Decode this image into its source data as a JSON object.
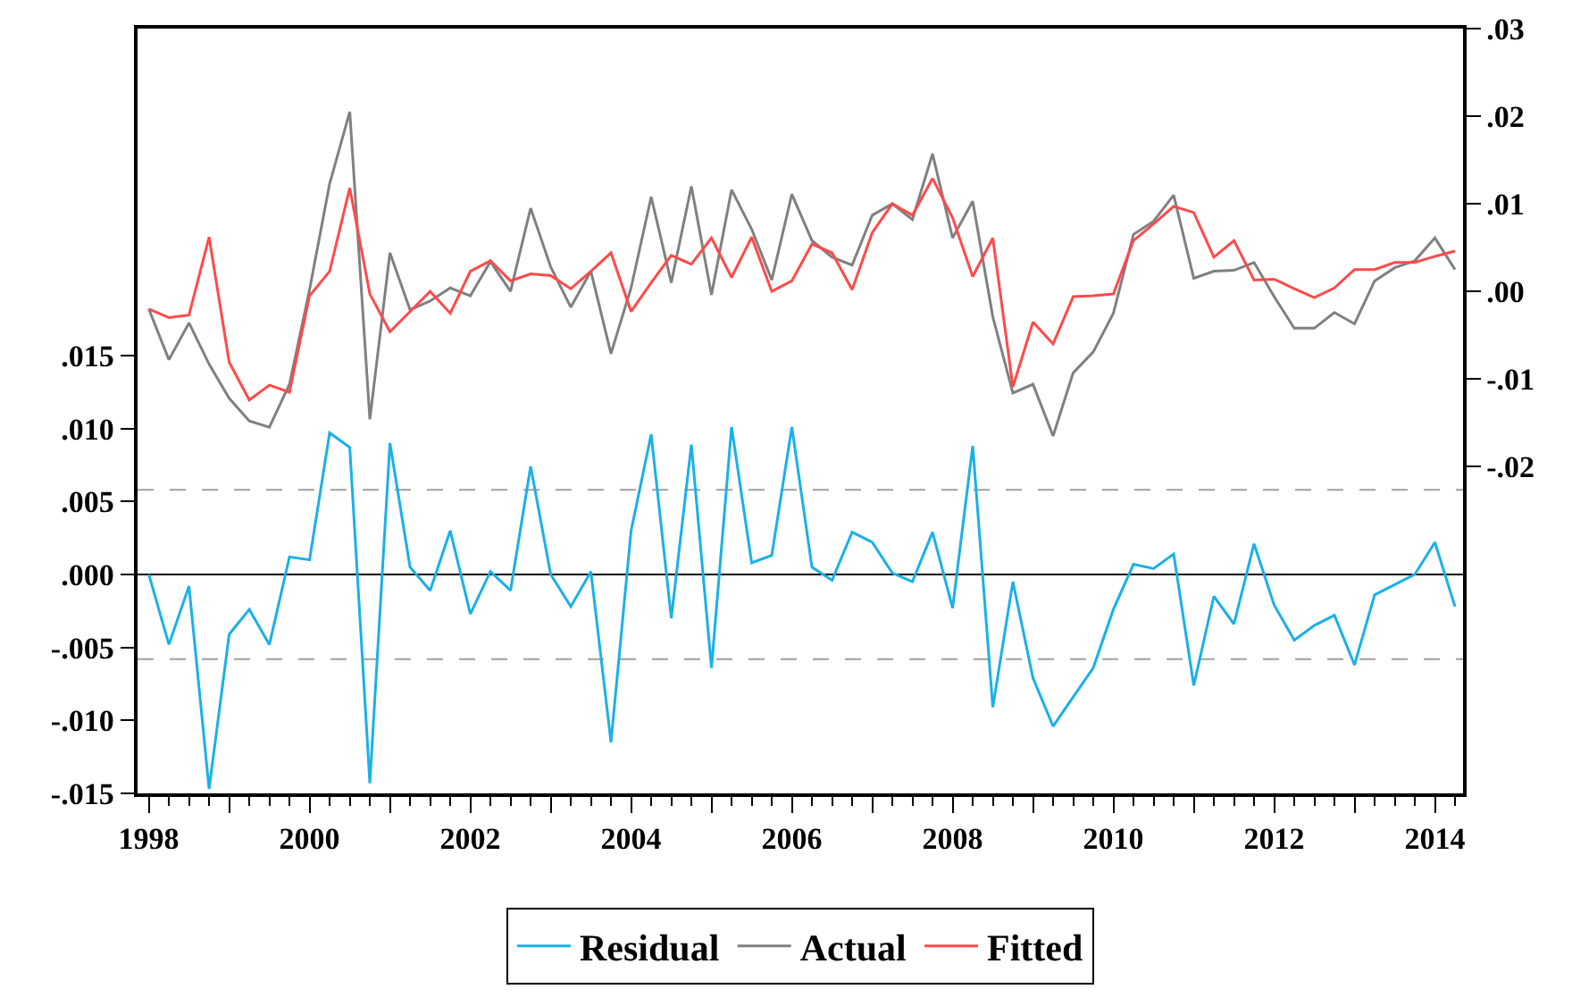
{
  "chart_data": {
    "type": "line",
    "x": [
      1998,
      1998.25,
      1998.5,
      1998.75,
      1999,
      1999.25,
      1999.5,
      1999.75,
      2000,
      2000.25,
      2000.5,
      2000.75,
      2001,
      2001.25,
      2001.5,
      2001.75,
      2002,
      2002.25,
      2002.5,
      2002.75,
      2003,
      2003.25,
      2003.5,
      2003.75,
      2004,
      2004.25,
      2004.5,
      2004.75,
      2005,
      2005.25,
      2005.5,
      2005.75,
      2006,
      2006.25,
      2006.5,
      2006.75,
      2007,
      2007.25,
      2007.5,
      2007.75,
      2008,
      2008.25,
      2008.5,
      2008.75,
      2009,
      2009.25,
      2009.5,
      2009.75,
      2010,
      2010.25,
      2010.5,
      2010.75,
      2011,
      2011.25,
      2011.5,
      2011.75,
      2012,
      2012.25,
      2012.5,
      2012.75,
      2013,
      2013.25,
      2013.5,
      2013.75,
      2014,
      2014.25
    ],
    "series": [
      {
        "name": "Residual",
        "color": "#1ab0e8",
        "axis": "y",
        "values": [
          0,
          -0.0048,
          -0.0008,
          -0.0147,
          -0.0041,
          -0.0024,
          -0.0048,
          0.0012,
          0.001,
          0.0097,
          0.0087,
          -0.0143,
          0.009,
          0.0005,
          -0.0011,
          0.003,
          -0.0027,
          0.0002,
          -0.0011,
          0.0074,
          0,
          -0.0022,
          0.0002,
          -0.0115,
          0.003,
          0.0096,
          -0.003,
          0.0089,
          -0.0064,
          0.0101,
          0.0008,
          0.0013,
          0.0101,
          0.0005,
          -0.0004,
          0.0029,
          0.0022,
          0.0001,
          -0.0005,
          0.0029,
          -0.0023,
          0.0088,
          -0.0091,
          -0.0005,
          -0.0071,
          -0.0104,
          -0.0084,
          -0.0064,
          -0.0024,
          0.0007,
          0.0004,
          0.0014,
          -0.0076,
          -0.0015,
          -0.0034,
          0.0021,
          -0.0021,
          -0.0045,
          -0.0035,
          -0.0028,
          -0.0062,
          -0.0014,
          -0.0007,
          0,
          0.0022,
          -0.0022
        ]
      },
      {
        "name": "Actual",
        "color": "#808080",
        "axis": "y2",
        "values": [
          -0.002,
          -0.0078,
          -0.0036,
          -0.0083,
          -0.0122,
          -0.0148,
          -0.0155,
          -0.0106,
          0.0002,
          0.0123,
          0.0205,
          -0.0146,
          0.0044,
          -0.0021,
          -0.0011,
          0.0004,
          -0.0005,
          0.0034,
          0,
          0.0095,
          0.0028,
          -0.0018,
          0.0023,
          -0.0071,
          0.0004,
          0.0108,
          0.001,
          0.012,
          -0.0004,
          0.0116,
          0.0071,
          0.0013,
          0.0111,
          0.0058,
          0.0039,
          0.003,
          0.0087,
          0.01,
          0.0082,
          0.0157,
          0.0061,
          0.0103,
          -0.0029,
          -0.0116,
          -0.0106,
          -0.0165,
          -0.0093,
          -0.0069,
          -0.0025,
          0.0065,
          0.008,
          0.011,
          0.0015,
          0.0023,
          0.0024,
          0.0033,
          -0.0006,
          -0.0042,
          -0.0042,
          -0.0024,
          -0.0037,
          0.0012,
          0.0027,
          0.0035,
          0.0061,
          0.0025
        ]
      },
      {
        "name": "Fitted",
        "color": "#ff4a4a",
        "axis": "y2",
        "values": [
          -0.002,
          -0.003,
          -0.0027,
          0.0062,
          -0.0081,
          -0.0124,
          -0.0107,
          -0.0115,
          -0.0005,
          0.0023,
          0.0118,
          -0.0003,
          -0.0046,
          -0.0023,
          0,
          -0.0025,
          0.0023,
          0.0035,
          0.0012,
          0.002,
          0.0018,
          0.0003,
          0.0023,
          0.0044,
          -0.0023,
          0.001,
          0.0041,
          0.0031,
          0.0061,
          0.0016,
          0.0062,
          0,
          0.0012,
          0.0054,
          0.0044,
          0.0002,
          0.0067,
          0.01,
          0.0087,
          0.0129,
          0.0084,
          0.0017,
          0.0061,
          -0.0109,
          -0.0035,
          -0.006,
          -0.0006,
          -0.0005,
          -0.0003,
          0.0058,
          0.0077,
          0.0097,
          0.009,
          0.0039,
          0.0058,
          0.0013,
          0.0014,
          0.0003,
          -0.0007,
          0.0004,
          0.0025,
          0.0025,
          0.0033,
          0.0033,
          0.004,
          0.0046
        ]
      }
    ],
    "xlim": [
      1997.86,
      2014.35
    ],
    "xticks": [
      {
        "value": 1998,
        "label": "1998"
      },
      {
        "value": 1999,
        "label": null
      },
      {
        "value": 2000,
        "label": "2000"
      },
      {
        "value": 2001,
        "label": null
      },
      {
        "value": 2002,
        "label": "2002"
      },
      {
        "value": 2003,
        "label": null
      },
      {
        "value": 2004,
        "label": "2004"
      },
      {
        "value": 2005,
        "label": null
      },
      {
        "value": 2006,
        "label": "2006"
      },
      {
        "value": 2007,
        "label": null
      },
      {
        "value": 2008,
        "label": "2008"
      },
      {
        "value": 2009,
        "label": null
      },
      {
        "value": 2010,
        "label": "2010"
      },
      {
        "value": 2011,
        "label": null
      },
      {
        "value": 2012,
        "label": "2012"
      },
      {
        "value": 2013,
        "label": null
      },
      {
        "value": 2014,
        "label": "2014"
      }
    ],
    "ylim": [
      -0.015,
      0.0374
    ],
    "yticks": [
      {
        "value": -0.015,
        "label": "-.015"
      },
      {
        "value": -0.01,
        "label": "-.010"
      },
      {
        "value": -0.005,
        "label": "-.005"
      },
      {
        "value": 0,
        "label": ".000"
      },
      {
        "value": 0.005,
        "label": ".005"
      },
      {
        "value": 0.01,
        "label": ".010"
      },
      {
        "value": 0.015,
        "label": ".015"
      }
    ],
    "y2lim": [
      -0.0573,
      0.03
    ],
    "y2ticks": [
      {
        "value": -0.02,
        "label": "-.02"
      },
      {
        "value": -0.01,
        "label": "-.01"
      },
      {
        "value": 0,
        "label": ".00"
      },
      {
        "value": 0.01,
        "label": ".01"
      },
      {
        "value": 0.02,
        "label": ".02"
      },
      {
        "value": 0.03,
        "label": ".03"
      }
    ],
    "ref_lines": [
      {
        "axis": "y",
        "value": 0,
        "color": "#000000",
        "line_style": "solid"
      },
      {
        "axis": "y",
        "value": 0.0058,
        "color": "#a0a0a0",
        "line_style": "dashed"
      },
      {
        "axis": "y",
        "value": -0.0058,
        "color": "#a0a0a0",
        "line_style": "dashed"
      }
    ],
    "grid": false,
    "legend": "bottom",
    "marker": "none",
    "line_style": "solid"
  }
}
